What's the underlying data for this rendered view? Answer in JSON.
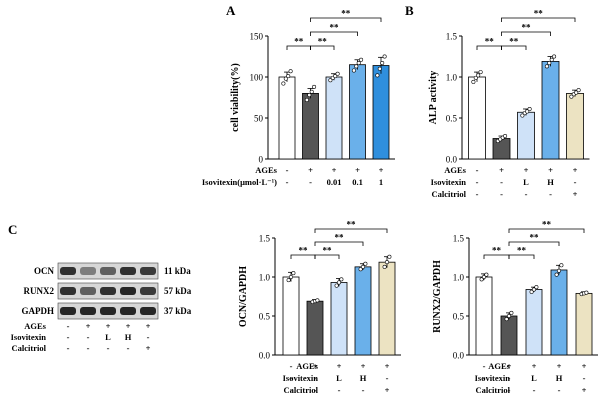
{
  "figure": {
    "colors": {
      "white": "#ffffff",
      "dark": "#555555",
      "light_blue": "#cfe2f8",
      "mid_blue": "#6ab0ea",
      "blue": "#2f8fdd",
      "beige": "#ece3c2"
    },
    "significance": "**"
  },
  "chart_data": [
    {
      "panel": "A",
      "type": "bar",
      "ylabel": "cell viability(%)",
      "ylim": [
        0,
        150
      ],
      "yticks": [
        0,
        50,
        100,
        150
      ],
      "values": [
        100,
        80,
        100,
        115,
        114
      ],
      "errors": [
        6,
        6,
        4,
        6,
        10
      ],
      "points": [
        [
          92,
          98,
          101,
          107
        ],
        [
          72,
          78,
          82,
          88
        ],
        [
          96,
          99,
          101,
          104
        ],
        [
          108,
          113,
          117,
          121
        ],
        [
          102,
          110,
          117,
          125
        ]
      ],
      "colors": [
        "#ffffff",
        "#555555",
        "#cfe2f8",
        "#6ab0ea",
        "#2f8fdd"
      ],
      "brackets": [
        [
          0,
          1,
          0
        ],
        [
          1,
          2,
          0
        ],
        [
          1,
          3,
          1
        ],
        [
          1,
          4,
          2
        ]
      ],
      "rows": [
        {
          "label": "AGEs",
          "cells": [
            "-",
            "+",
            "+",
            "+",
            "+"
          ]
        },
        {
          "label": "Isovitexin(μmol·L⁻¹)",
          "cells": [
            "-",
            "-",
            "0.01",
            "0.1",
            "1"
          ]
        }
      ]
    },
    {
      "panel": "B",
      "type": "bar",
      "ylabel": "ALP activity",
      "ylim": [
        0,
        1.5
      ],
      "yticks": [
        "0.0",
        "0.5",
        "1.0",
        "1.5"
      ],
      "values": [
        1.0,
        0.25,
        0.57,
        1.19,
        0.8
      ],
      "errors": [
        0.06,
        0.03,
        0.04,
        0.06,
        0.04
      ],
      "points": [
        [
          0.94,
          0.99,
          1.02,
          1.06
        ],
        [
          0.22,
          0.24,
          0.26,
          0.28
        ],
        [
          0.53,
          0.56,
          0.58,
          0.61
        ],
        [
          1.13,
          1.17,
          1.21,
          1.25
        ],
        [
          0.76,
          0.79,
          0.81,
          0.84
        ]
      ],
      "colors": [
        "#ffffff",
        "#555555",
        "#cfe2f8",
        "#6ab0ea",
        "#ece3c2"
      ],
      "brackets": [
        [
          0,
          1,
          0
        ],
        [
          1,
          2,
          0
        ],
        [
          1,
          3,
          1
        ],
        [
          1,
          4,
          2
        ]
      ],
      "rows": [
        {
          "label": "AGEs",
          "cells": [
            "-",
            "+",
            "+",
            "+",
            "+"
          ]
        },
        {
          "label": "Isovitexin",
          "cells": [
            "-",
            "-",
            "L",
            "H",
            "-"
          ]
        },
        {
          "label": "Calcitriol",
          "cells": [
            "-",
            "-",
            "-",
            "-",
            "+"
          ]
        }
      ]
    },
    {
      "panel": "C-OCN",
      "type": "bar",
      "ylabel": "OCN/GAPDH",
      "ylim": [
        0,
        1.5
      ],
      "yticks": [
        "0.0",
        "0.5",
        "1.0",
        "1.5"
      ],
      "values": [
        1.0,
        0.69,
        0.93,
        1.13,
        1.19
      ],
      "errors": [
        0.06,
        0.02,
        0.05,
        0.04,
        0.07
      ],
      "points": [
        [
          0.96,
          1.0,
          1.05
        ],
        [
          0.68,
          0.69,
          0.7
        ],
        [
          0.89,
          0.93,
          0.97
        ],
        [
          1.1,
          1.13,
          1.17
        ],
        [
          1.13,
          1.19,
          1.26
        ]
      ],
      "colors": [
        "#ffffff",
        "#555555",
        "#cfe2f8",
        "#6ab0ea",
        "#ece3c2"
      ],
      "brackets": [
        [
          0,
          1,
          0
        ],
        [
          1,
          2,
          0
        ],
        [
          1,
          3,
          1
        ],
        [
          1,
          4,
          2
        ]
      ],
      "rows": [
        {
          "label": "AGEs",
          "cells": [
            "-",
            "+",
            "+",
            "+",
            "+"
          ]
        },
        {
          "label": "Isovitexin",
          "cells": [
            "-",
            "-",
            "L",
            "H",
            "-"
          ]
        },
        {
          "label": "Calcitriol",
          "cells": [
            "-",
            "-",
            "-",
            "-",
            "+"
          ]
        }
      ]
    },
    {
      "panel": "C-RUNX2",
      "type": "bar",
      "ylabel": "RUNX2/GAPDH",
      "ylim": [
        0,
        1.5
      ],
      "yticks": [
        "0.0",
        "0.5",
        "1.0",
        "1.5"
      ],
      "values": [
        1.0,
        0.5,
        0.84,
        1.09,
        0.79
      ],
      "errors": [
        0.04,
        0.04,
        0.03,
        0.06,
        0.02
      ],
      "points": [
        [
          0.97,
          1.0,
          1.03
        ],
        [
          0.46,
          0.5,
          0.54
        ],
        [
          0.81,
          0.84,
          0.87
        ],
        [
          1.03,
          1.08,
          1.15
        ],
        [
          0.78,
          0.79,
          0.8
        ]
      ],
      "colors": [
        "#ffffff",
        "#555555",
        "#cfe2f8",
        "#6ab0ea",
        "#ece3c2"
      ],
      "brackets": [
        [
          0,
          1,
          0
        ],
        [
          1,
          2,
          0
        ],
        [
          1,
          3,
          1
        ],
        [
          1,
          4,
          2
        ]
      ],
      "rows": [
        {
          "label": "AGEs",
          "cells": [
            "-",
            "+",
            "+",
            "+",
            "+"
          ]
        },
        {
          "label": "Isovitexin",
          "cells": [
            "-",
            "-",
            "L",
            "H",
            "-"
          ]
        },
        {
          "label": "Calcitriol",
          "cells": [
            "-",
            "-",
            "-",
            "-",
            "+"
          ]
        }
      ]
    }
  ],
  "panel_labels": {
    "a": "A",
    "b": "B",
    "c": "C"
  },
  "western_blot": {
    "bands": [
      {
        "protein": "OCN",
        "size": "11 kDa"
      },
      {
        "protein": "RUNX2",
        "size": "57 kDa"
      },
      {
        "protein": "GAPDH",
        "size": "37 kDa"
      }
    ],
    "intensity": [
      [
        0.85,
        0.45,
        0.6,
        0.85,
        0.8
      ],
      [
        0.85,
        0.6,
        0.85,
        0.9,
        0.8
      ],
      [
        0.9,
        0.9,
        0.9,
        0.9,
        0.9
      ]
    ],
    "rows": [
      {
        "label": "AGEs",
        "cells": [
          "-",
          "+",
          "+",
          "+",
          "+"
        ]
      },
      {
        "label": "Isovitexin",
        "cells": [
          "-",
          "-",
          "L",
          "H",
          "-"
        ]
      },
      {
        "label": "Calcitriol",
        "cells": [
          "-",
          "-",
          "-",
          "-",
          "+"
        ]
      }
    ]
  }
}
